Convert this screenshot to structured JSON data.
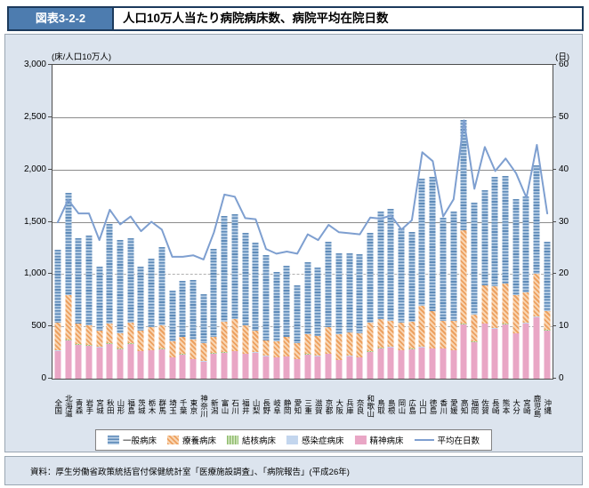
{
  "header": {
    "tag": "図表3-2-2",
    "title": "人口10万人当たり病院病床数、病院平均在院日数"
  },
  "axes": {
    "left_unit": "(床/人口10万人)",
    "right_unit": "(日)",
    "left_ticks": [
      "3,000",
      "2,500",
      "2,000",
      "1,500",
      "1,000",
      "500",
      "0"
    ],
    "right_ticks": [
      "60",
      "50",
      "40",
      "30",
      "20",
      "10",
      "0"
    ]
  },
  "legend": {
    "items": [
      {
        "key": "general",
        "label": "一般病床"
      },
      {
        "key": "ryoyo",
        "label": "療養病床"
      },
      {
        "key": "tb",
        "label": "結核病床"
      },
      {
        "key": "infectious",
        "label": "感染症病床"
      },
      {
        "key": "psychiatric",
        "label": "精神病床"
      },
      {
        "key": "line",
        "label": "平均在日数"
      }
    ]
  },
  "footer": {
    "source": "資料：厚生労働省政策統括官付保健統計室「医療施設調査」、「病院報告」(平成26年)"
  },
  "chart_data": {
    "type": "bar",
    "subtype": "stacked-bar-with-line",
    "title": "人口10万人当たり病院病床数、病院平均在院日数",
    "ylabel_left": "(床/人口10万人)",
    "ylabel_right": "(日)",
    "ylim_left": [
      0,
      3000
    ],
    "ylim_right": [
      0,
      60
    ],
    "gridlines_solid": [
      1500,
      2000,
      2500
    ],
    "gridlines_dashed": [
      500,
      1000
    ],
    "legend_position": "bottom",
    "categories": [
      "全国",
      "北海道",
      "青森",
      "岩手",
      "宮城",
      "秋田",
      "山形",
      "福島",
      "茨城",
      "栃木",
      "群馬",
      "埼玉",
      "千葉",
      "東京",
      "神奈川",
      "新潟",
      "富山",
      "石川",
      "福井",
      "山梨",
      "長野",
      "岐阜",
      "静岡",
      "愛知",
      "三重",
      "滋賀",
      "京都",
      "大阪",
      "兵庫",
      "奈良",
      "和歌山",
      "鳥取",
      "島根",
      "岡山",
      "広島",
      "山口",
      "徳島",
      "香川",
      "愛媛",
      "高知",
      "福岡",
      "佐賀",
      "長崎",
      "熊本",
      "大分",
      "宮崎",
      "鹿児島",
      "沖縄"
    ],
    "series": [
      {
        "name": "精神病床",
        "key": "psychiatric",
        "values": [
          266,
          367,
          324,
          315,
          300,
          330,
          280,
          330,
          260,
          270,
          280,
          200,
          230,
          185,
          165,
          240,
          245,
          260,
          235,
          250,
          215,
          200,
          210,
          185,
          230,
          215,
          235,
          175,
          215,
          200,
          255,
          290,
          300,
          270,
          280,
          300,
          285,
          285,
          270,
          520,
          350,
          523,
          480,
          520,
          430,
          530,
          590,
          460
        ]
      },
      {
        "name": "感染症病床",
        "key": "infectious",
        "values": [
          2,
          2,
          2,
          2,
          2,
          2,
          2,
          2,
          2,
          2,
          2,
          2,
          2,
          2,
          2,
          2,
          2,
          2,
          2,
          2,
          2,
          2,
          2,
          2,
          2,
          2,
          2,
          2,
          2,
          2,
          2,
          2,
          2,
          2,
          2,
          2,
          2,
          2,
          2,
          2,
          2,
          2,
          2,
          2,
          2,
          2,
          2,
          2
        ]
      },
      {
        "name": "結核病床",
        "key": "tb",
        "values": [
          4,
          4,
          4,
          4,
          4,
          4,
          4,
          4,
          4,
          4,
          4,
          4,
          4,
          4,
          4,
          4,
          4,
          4,
          4,
          4,
          4,
          4,
          4,
          4,
          4,
          4,
          4,
          4,
          4,
          4,
          4,
          4,
          4,
          4,
          4,
          4,
          4,
          4,
          4,
          4,
          4,
          4,
          4,
          4,
          4,
          4,
          4,
          4
        ]
      },
      {
        "name": "療養病床",
        "key": "ryoyo",
        "values": [
          262,
          423,
          196,
          190,
          150,
          190,
          150,
          200,
          190,
          220,
          220,
          150,
          160,
          185,
          165,
          150,
          295,
          300,
          265,
          200,
          145,
          150,
          185,
          145,
          190,
          190,
          250,
          245,
          225,
          230,
          275,
          270,
          245,
          260,
          260,
          390,
          355,
          260,
          280,
          890,
          260,
          367,
          400,
          380,
          360,
          290,
          410,
          180
        ]
      },
      {
        "name": "一般病床",
        "key": "general",
        "values": [
          700,
          983,
          815,
          859,
          617,
          951,
          894,
          809,
          617,
          654,
          754,
          484,
          542,
          570,
          469,
          847,
          1009,
          1004,
          884,
          843,
          814,
          660,
          679,
          553,
          690,
          649,
          819,
          775,
          754,
          750,
          862,
          1034,
          1069,
          904,
          854,
          1216,
          1284,
          989,
          1044,
          1054,
          1065,
          904,
          1044,
          1035,
          924,
          914,
          1036,
          667
        ]
      }
    ],
    "line": {
      "name": "平均在日数",
      "axis": "right",
      "values": [
        29.9,
        34.2,
        31.6,
        31.6,
        26.5,
        32.3,
        29.5,
        31.0,
        28.2,
        30.0,
        28.5,
        23.3,
        23.3,
        23.6,
        22.8,
        28.0,
        35.2,
        34.8,
        30.7,
        30.5,
        24.8,
        23.9,
        24.3,
        23.9,
        27.6,
        26.5,
        29.4,
        28.0,
        27.8,
        27.6,
        30.8,
        30.6,
        31.2,
        28.5,
        30.3,
        43.3,
        41.6,
        31.0,
        34.3,
        49.4,
        36.3,
        44.3,
        39.7,
        42.1,
        39.3,
        34.6,
        44.7,
        31.6
      ]
    },
    "colors": {
      "psychiatric": "#e9a6c5",
      "infectious": "#c3d6ee",
      "tb": "#8fbc6e",
      "ryoyo": "#eda05f",
      "general": "#5d8ab8",
      "line": "#7e9fd0",
      "panel_bg": "#dce4ee",
      "header_badge_bg": "#4d7caf",
      "header_border": "#1c3a5c"
    }
  }
}
